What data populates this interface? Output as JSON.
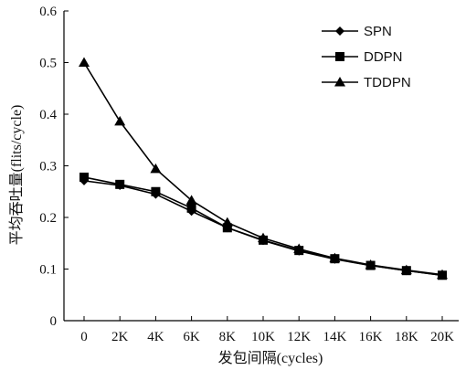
{
  "chart_data": {
    "type": "line",
    "xlabel": "发包间隔(cycles)",
    "ylabel": "平均吞吐量(flits/cycle)",
    "categories": [
      "0",
      "2K",
      "4K",
      "6K",
      "8K",
      "10K",
      "12K",
      "14K",
      "16K",
      "18K",
      "20K"
    ],
    "ylim": [
      0,
      0.6
    ],
    "yticks": [
      "0",
      "0.1",
      "0.2",
      "0.3",
      "0.4",
      "0.5",
      "0.6"
    ],
    "legend_position": "top-right",
    "grid": false,
    "series": [
      {
        "name": "SPN",
        "marker": "diamond",
        "values": [
          0.271,
          0.262,
          0.245,
          0.212,
          0.18,
          0.155,
          0.135,
          0.119,
          0.107,
          0.097,
          0.088
        ]
      },
      {
        "name": "DDPN",
        "marker": "square",
        "values": [
          0.278,
          0.264,
          0.25,
          0.218,
          0.18,
          0.156,
          0.136,
          0.12,
          0.107,
          0.097,
          0.088
        ]
      },
      {
        "name": "TDDPN",
        "marker": "triangle",
        "values": [
          0.5,
          0.386,
          0.294,
          0.233,
          0.19,
          0.16,
          0.139,
          0.121,
          0.108,
          0.098,
          0.089
        ]
      }
    ]
  }
}
